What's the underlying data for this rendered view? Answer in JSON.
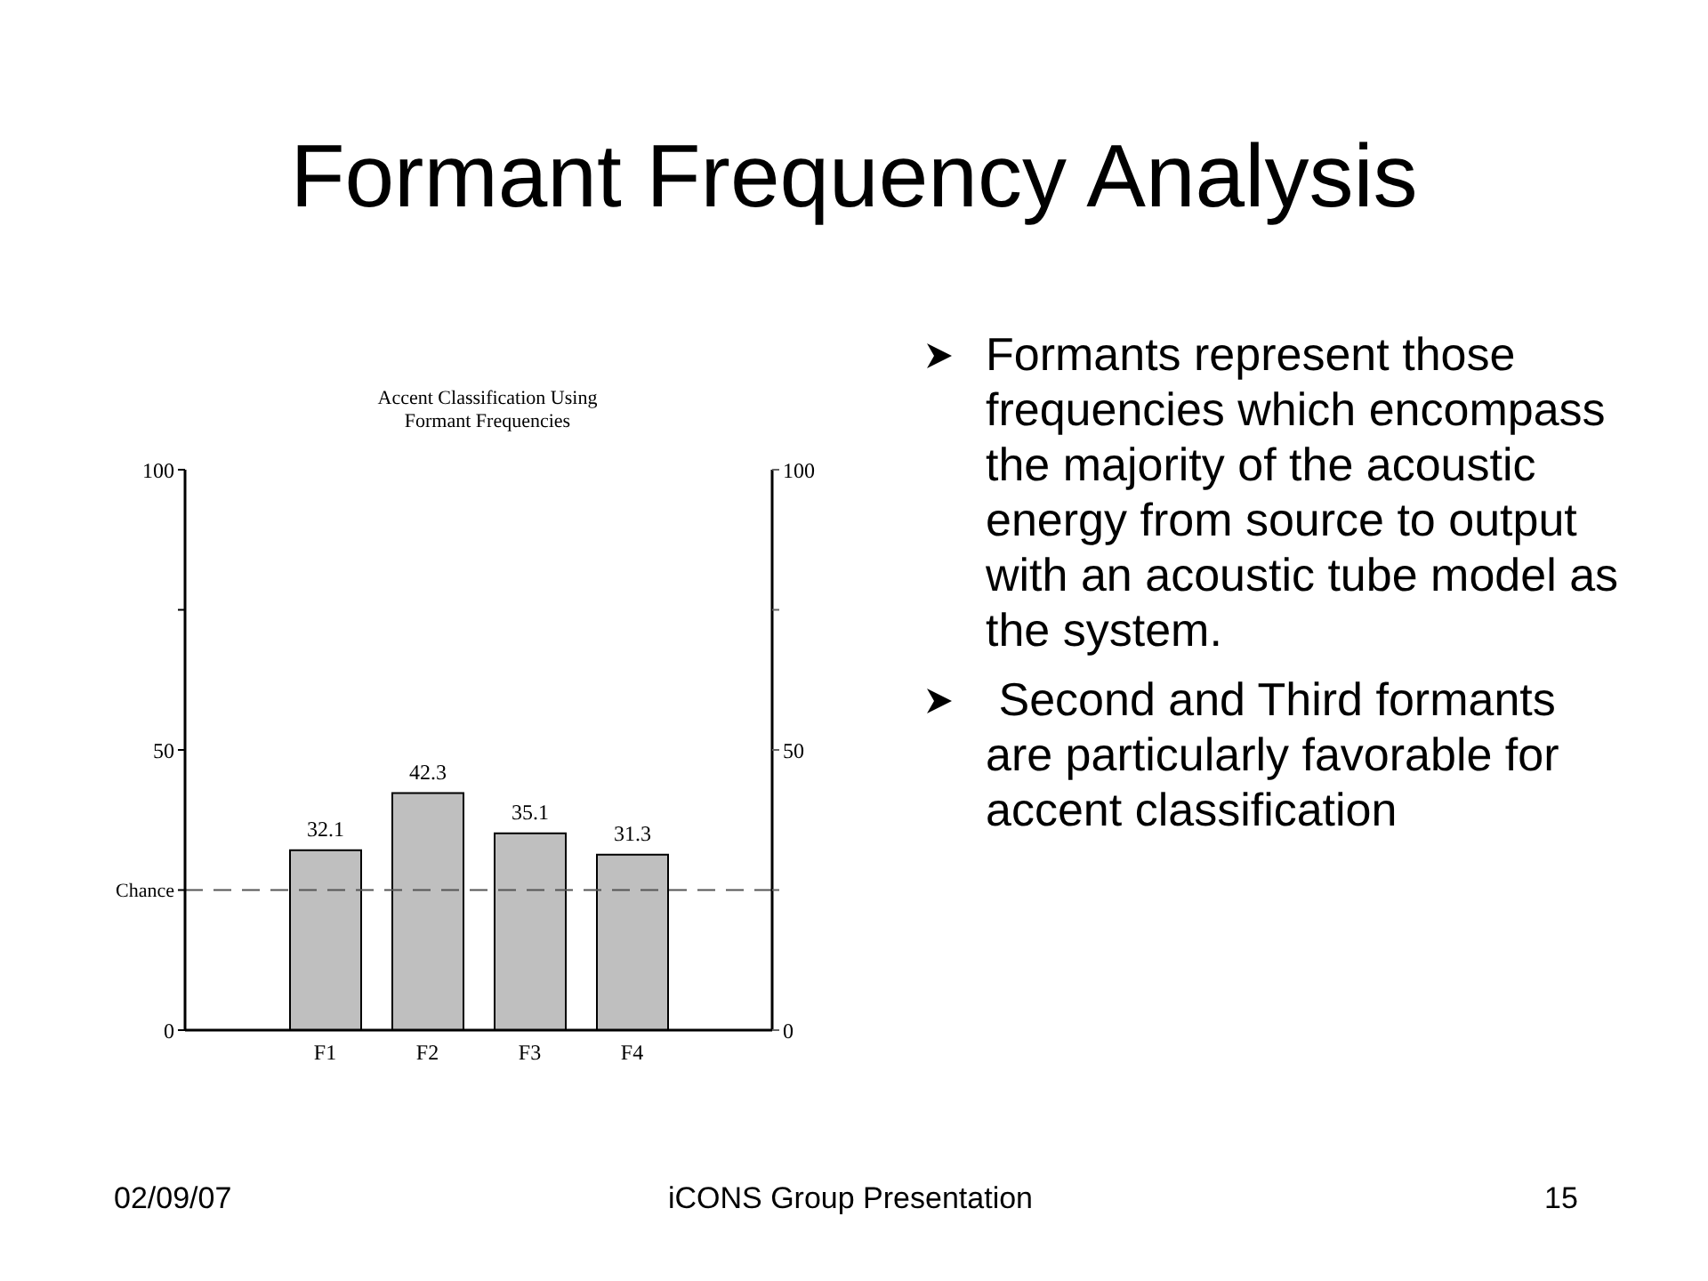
{
  "chart_data": {
    "type": "bar",
    "title": "Formant Frequency Analysis",
    "subtitle": "Accent Classification Using\nFormant Frequencies",
    "categories": [
      "F1",
      "F2",
      "F3",
      "F4"
    ],
    "values": [
      32.1,
      42.3,
      35.1,
      31.3
    ],
    "color": "#bfbfbf",
    "data_labels": true,
    "ylim": [
      0,
      100
    ],
    "yticks": [
      0,
      {
        "value": 25,
        "label": null
      },
      50,
      {
        "value": 75,
        "label": null
      },
      100
    ],
    "y2lim": [
      0,
      100
    ],
    "y2ticks": [
      0,
      {
        "value": 25,
        "label": null
      },
      50,
      {
        "value": 75,
        "label": null
      },
      100
    ],
    "ref_lines": [
      {
        "axis": "y",
        "value": 25,
        "label": "Chance",
        "line_style": "dashed"
      }
    ],
    "grid": false,
    "legend": false,
    "annotations": [
      "Formants represent those frequencies which encompass the majority of the acoustic energy from source to output with an acoustic tube model as the system.",
      " Second and Third formants are particularly favorable for accent classification",
      "02/09/07",
      "iCONS Group Presentation",
      "15"
    ]
  }
}
